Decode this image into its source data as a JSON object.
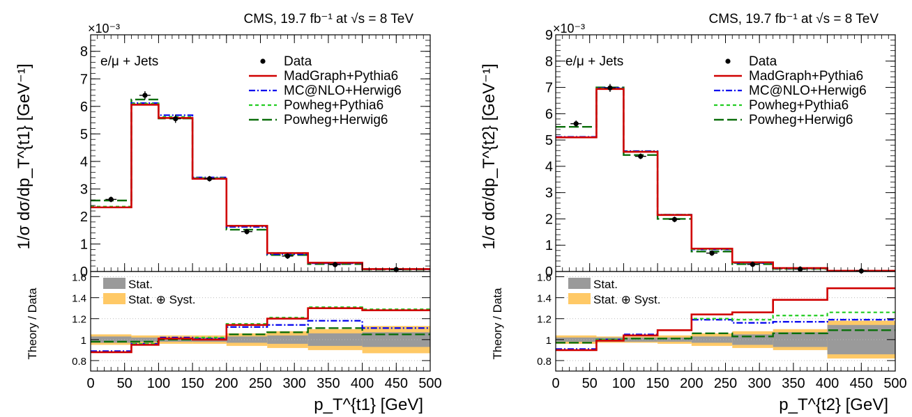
{
  "colors": {
    "madgraph": "#d00000",
    "mcatnlo": "#0000ee",
    "powheg_pythia": "#22cc22",
    "powheg_herwig": "#0a6e0a",
    "data": "#000000",
    "stat": "#9a9a9a",
    "syst": "#ffc966"
  },
  "chart_data": [
    {
      "type": "line",
      "panel": "left",
      "header": "CMS, 19.7 fb⁻¹ at √s = 8 TeV",
      "channel_label": "e/μ + Jets",
      "xlabel": "p_T^{t1} [GeV]",
      "ylabel": "1/σ dσ/dp_T^{t1} [GeV⁻¹]",
      "exponent_label": "×10⁻³",
      "ratio_ylabel": "Theory / Data",
      "xlim": [
        0,
        500
      ],
      "ylim": [
        0,
        8.6
      ],
      "ratio_ylim": [
        0.7,
        1.65
      ],
      "grid": false,
      "legend_position": "top-right",
      "bin_edges": [
        0,
        60,
        100,
        150,
        200,
        260,
        320,
        400,
        500
      ],
      "x_ticks": [
        0,
        50,
        100,
        150,
        200,
        250,
        300,
        350,
        400,
        450,
        500
      ],
      "y_ticks": [
        0,
        1,
        2,
        3,
        4,
        5,
        6,
        7,
        8
      ],
      "ratio_ticks": [
        0.8,
        1,
        1.2,
        1.4,
        1.6
      ],
      "data": {
        "name": "Data",
        "x": [
          30,
          80,
          125,
          175,
          230,
          290,
          360,
          450
        ],
        "y": [
          2.62,
          6.4,
          5.55,
          3.37,
          1.45,
          0.56,
          0.25,
          0.07
        ],
        "err": [
          0.1,
          0.15,
          0.15,
          0.1,
          0.06,
          0.03,
          0.02,
          0.01
        ]
      },
      "series": [
        {
          "name": "MadGraph+Pythia6",
          "values": [
            2.33,
            6.06,
            5.58,
            3.37,
            1.66,
            0.67,
            0.32,
            0.09
          ],
          "ratio": [
            0.88,
            0.95,
            1.01,
            1.0,
            1.14,
            1.2,
            1.3,
            1.28
          ]
        },
        {
          "name": "MC@NLO+Herwig6",
          "values": [
            2.33,
            6.12,
            5.68,
            3.42,
            1.62,
            0.63,
            0.3,
            0.08
          ],
          "ratio": [
            0.89,
            0.96,
            1.02,
            1.01,
            1.12,
            1.14,
            1.18,
            1.11
          ]
        },
        {
          "name": "Powheg+Pythia6",
          "values": [
            2.36,
            6.1,
            5.62,
            3.4,
            1.66,
            0.67,
            0.32,
            0.09
          ],
          "ratio": [
            0.88,
            0.96,
            1.01,
            1.02,
            1.15,
            1.21,
            1.31,
            1.29
          ]
        },
        {
          "name": "Powheg+Herwig6",
          "values": [
            2.58,
            6.25,
            5.56,
            3.38,
            1.52,
            0.6,
            0.27,
            0.07
          ],
          "ratio": [
            0.98,
            0.98,
            1.0,
            1.0,
            1.05,
            1.07,
            1.11,
            1.05
          ]
        }
      ],
      "stat_band": [
        0.03,
        0.02,
        0.02,
        0.02,
        0.03,
        0.04,
        0.06,
        0.07
      ],
      "total_band": [
        0.05,
        0.04,
        0.04,
        0.04,
        0.06,
        0.08,
        0.1,
        0.13
      ],
      "legend_stat": "Stat.",
      "legend_syst": "Stat. ⊕ Syst."
    },
    {
      "type": "line",
      "panel": "right",
      "header": "CMS, 19.7 fb⁻¹ at √s = 8 TeV",
      "channel_label": "e/μ + Jets",
      "xlabel": "p_T^{t2} [GeV]",
      "ylabel": "1/σ dσ/dp_T^{t2} [GeV⁻¹]",
      "exponent_label": "×10⁻³",
      "ratio_ylabel": "Theory / Data",
      "xlim": [
        0,
        500
      ],
      "ylim": [
        0,
        9
      ],
      "ratio_ylim": [
        0.7,
        1.65
      ],
      "grid": false,
      "legend_position": "top-right",
      "bin_edges": [
        0,
        60,
        100,
        150,
        200,
        260,
        320,
        400,
        500
      ],
      "x_ticks": [
        0,
        50,
        100,
        150,
        200,
        250,
        300,
        350,
        400,
        450,
        500
      ],
      "y_ticks": [
        0,
        1,
        2,
        3,
        4,
        5,
        6,
        7,
        8,
        9
      ],
      "ratio_ticks": [
        0.8,
        1,
        1.2,
        1.4,
        1.6
      ],
      "data": {
        "name": "Data",
        "x": [
          30,
          80,
          125,
          175,
          230,
          290,
          360,
          450
        ],
        "y": [
          5.62,
          6.98,
          4.38,
          1.98,
          0.7,
          0.27,
          0.09,
          0.02
        ],
        "err": [
          0.12,
          0.15,
          0.1,
          0.06,
          0.03,
          0.02,
          0.01,
          0.005
        ]
      },
      "series": [
        {
          "name": "MadGraph+Pythia6",
          "values": [
            5.1,
            6.94,
            4.55,
            2.15,
            0.87,
            0.35,
            0.13,
            0.03
          ],
          "ratio": [
            0.9,
            0.99,
            1.04,
            1.09,
            1.24,
            1.26,
            1.38,
            1.49
          ]
        },
        {
          "name": "MC@NLO+Herwig6",
          "values": [
            5.12,
            6.98,
            4.58,
            2.16,
            0.84,
            0.32,
            0.11,
            0.02
          ],
          "ratio": [
            0.91,
            1.0,
            1.05,
            1.09,
            1.19,
            1.16,
            1.17,
            1.19
          ]
        },
        {
          "name": "Powheg+Pythia6",
          "values": [
            5.1,
            6.96,
            4.56,
            2.16,
            0.85,
            0.33,
            0.11,
            0.02
          ],
          "ratio": [
            0.9,
            1.0,
            1.04,
            1.09,
            1.2,
            1.19,
            1.23,
            1.26
          ]
        },
        {
          "name": "Powheg+Herwig6",
          "values": [
            5.5,
            7.0,
            4.43,
            2.0,
            0.76,
            0.28,
            0.1,
            0.02
          ],
          "ratio": [
            0.97,
            1.0,
            1.01,
            1.01,
            1.06,
            1.03,
            1.06,
            1.09
          ]
        }
      ],
      "stat_band": [
        0.02,
        0.02,
        0.02,
        0.02,
        0.03,
        0.05,
        0.07,
        0.14
      ],
      "total_band": [
        0.04,
        0.03,
        0.03,
        0.04,
        0.06,
        0.08,
        0.1,
        0.18
      ],
      "legend_stat": "Stat.",
      "legend_syst": "Stat. ⊕ Syst."
    }
  ]
}
